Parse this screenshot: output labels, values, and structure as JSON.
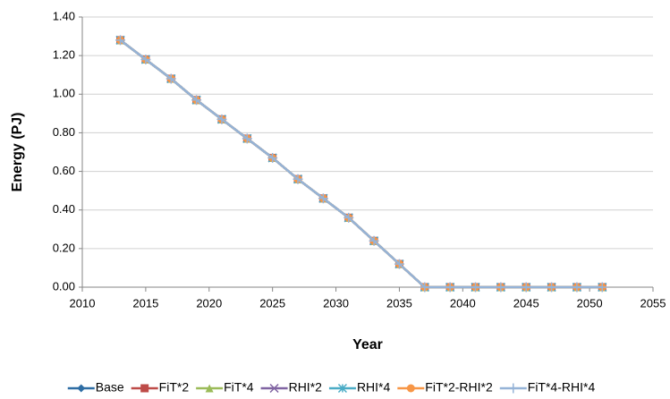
{
  "chart_data": {
    "type": "line",
    "x_label": "Year",
    "y_label": "Energy (PJ)",
    "x": [
      2013,
      2015,
      2017,
      2019,
      2021,
      2023,
      2025,
      2027,
      2029,
      2031,
      2033,
      2035,
      2037,
      2039,
      2041,
      2043,
      2045,
      2047,
      2049,
      2051
    ],
    "series": [
      {
        "name": "Base",
        "color": "#2e6da4",
        "marker": "diamond",
        "values": [
          1.28,
          1.18,
          1.08,
          0.97,
          0.87,
          0.77,
          0.67,
          0.56,
          0.46,
          0.36,
          0.24,
          0.12,
          0,
          0,
          0,
          0,
          0,
          0,
          0,
          0
        ]
      },
      {
        "name": "FiT*2",
        "color": "#be4b48",
        "marker": "square",
        "values": [
          1.28,
          1.18,
          1.08,
          0.97,
          0.87,
          0.77,
          0.67,
          0.56,
          0.46,
          0.36,
          0.24,
          0.12,
          0,
          0,
          0,
          0,
          0,
          0,
          0,
          0
        ]
      },
      {
        "name": "FiT*4",
        "color": "#9bbb59",
        "marker": "triangle",
        "values": [
          1.28,
          1.18,
          1.08,
          0.97,
          0.87,
          0.77,
          0.67,
          0.56,
          0.46,
          0.36,
          0.24,
          0.12,
          0,
          0,
          0,
          0,
          0,
          0,
          0,
          0
        ]
      },
      {
        "name": "RHI*2",
        "color": "#8064a2",
        "marker": "x",
        "values": [
          1.28,
          1.18,
          1.08,
          0.97,
          0.87,
          0.77,
          0.67,
          0.56,
          0.46,
          0.36,
          0.24,
          0.12,
          0,
          0,
          0,
          0,
          0,
          0,
          0,
          0
        ]
      },
      {
        "name": "RHI*4",
        "color": "#4bacc6",
        "marker": "star",
        "values": [
          1.28,
          1.18,
          1.08,
          0.97,
          0.87,
          0.77,
          0.67,
          0.56,
          0.46,
          0.36,
          0.24,
          0.12,
          0,
          0,
          0,
          0,
          0,
          0,
          0,
          0
        ]
      },
      {
        "name": "FiT*2-RHI*2",
        "color": "#f79646",
        "marker": "circle",
        "values": [
          1.28,
          1.18,
          1.08,
          0.97,
          0.87,
          0.77,
          0.67,
          0.56,
          0.46,
          0.36,
          0.24,
          0.12,
          0,
          0,
          0,
          0,
          0,
          0,
          0,
          0
        ]
      },
      {
        "name": "FiT*4-RHI*4",
        "color": "#95b3d7",
        "marker": "plus",
        "values": [
          1.28,
          1.18,
          1.08,
          0.97,
          0.87,
          0.77,
          0.67,
          0.56,
          0.46,
          0.36,
          0.24,
          0.12,
          0,
          0,
          0,
          0,
          0,
          0,
          0,
          0
        ]
      }
    ],
    "xlim": [
      2010,
      2055
    ],
    "xticks": [
      2010,
      2015,
      2020,
      2025,
      2030,
      2035,
      2040,
      2045,
      2050,
      2055
    ],
    "ylim": [
      0,
      1.4
    ],
    "yticks": [
      {
        "value": 0,
        "label": "0.00"
      },
      {
        "value": 0.2,
        "label": "0.20"
      },
      {
        "value": 0.4,
        "label": "0.40"
      },
      {
        "value": 0.6,
        "label": "0.60"
      },
      {
        "value": 0.8,
        "label": "0.80"
      },
      {
        "value": 1.0,
        "label": "1.00"
      },
      {
        "value": 1.2,
        "label": "1.20"
      },
      {
        "value": 1.4,
        "label": "1.40"
      }
    ],
    "grid": true,
    "legend": "bottom"
  }
}
